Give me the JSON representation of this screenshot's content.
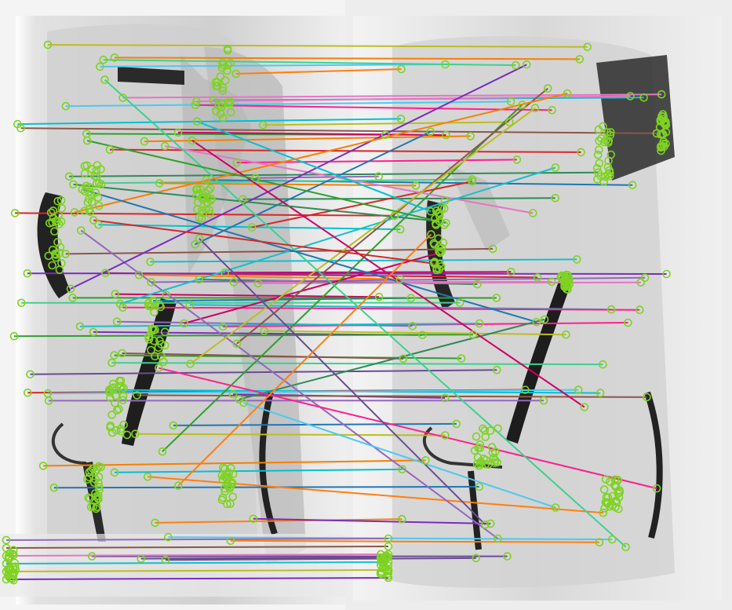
{
  "image": {
    "kind": "keypoint-match-visualization",
    "panels": [
      {
        "name": "left-xray-panel"
      },
      {
        "name": "right-xray-panel"
      }
    ],
    "keypoint_marker_color": "#7ed321",
    "line_colors": [
      "#1f77b4",
      "#ff7f0e",
      "#2ca02c",
      "#d62728",
      "#9467bd",
      "#8c564b",
      "#e377c2",
      "#17becf",
      "#bcbd22",
      "#7b2cbf",
      "#00c2d1",
      "#ff1f8e",
      "#3dd18f",
      "#4cc9f0",
      "#f77f00",
      "#6a4c93",
      "#cc0066",
      "#2e8b57"
    ],
    "background_colors": {
      "frame": "#ffffff",
      "xray_light": "#e6e6e6",
      "xray_mid": "#c9c9c9",
      "xray_dark": "#1f1f1f"
    }
  }
}
